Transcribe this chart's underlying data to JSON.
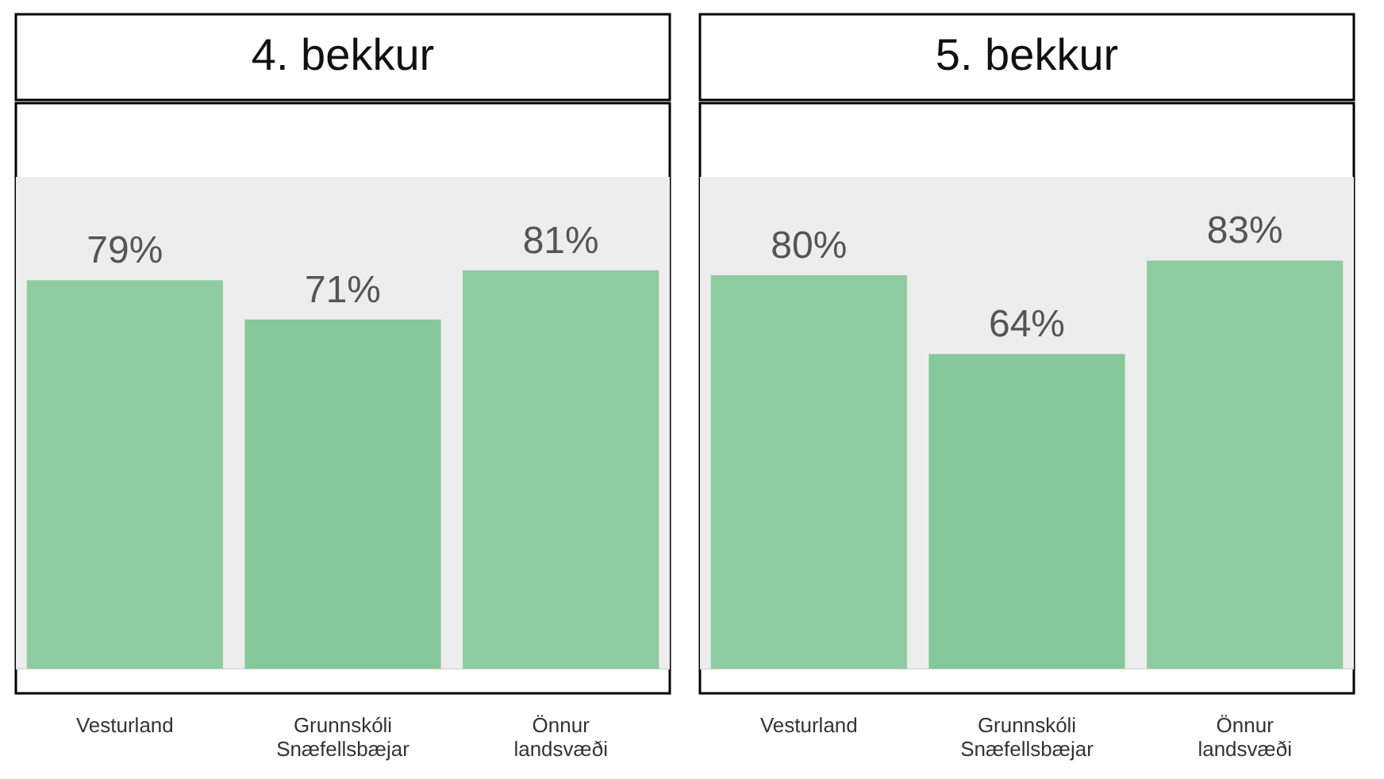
{
  "chart_data": [
    {
      "type": "bar",
      "title": "4. bekkur",
      "categories": [
        "Vesturland",
        "Grunnskóli Snæfellsbæjar",
        "Önnur landsvæði"
      ],
      "values": [
        79,
        71,
        81
      ],
      "value_labels": [
        "79%",
        "71%",
        "81%"
      ],
      "colors": [
        "#8fcba0",
        "#86c79b",
        "#8fcba0"
      ],
      "ylim": [
        -5,
        115
      ],
      "tick_labels": "x",
      "bands": [
        {
          "axis": "y",
          "from": 0,
          "to": 100,
          "color": "#ededed"
        }
      ]
    },
    {
      "type": "bar",
      "title": "5. bekkur",
      "categories": [
        "Vesturland",
        "Grunnskóli Snæfellsbæjar",
        "Önnur landsvæði"
      ],
      "values": [
        80,
        64,
        83
      ],
      "value_labels": [
        "80%",
        "64%",
        "83%"
      ],
      "colors": [
        "#8fcba0",
        "#86c79b",
        "#8fcba0"
      ],
      "ylim": [
        -5,
        115
      ],
      "tick_labels": "x",
      "bands": [
        {
          "axis": "y",
          "from": 0,
          "to": 100,
          "color": "#ededed"
        }
      ]
    }
  ]
}
